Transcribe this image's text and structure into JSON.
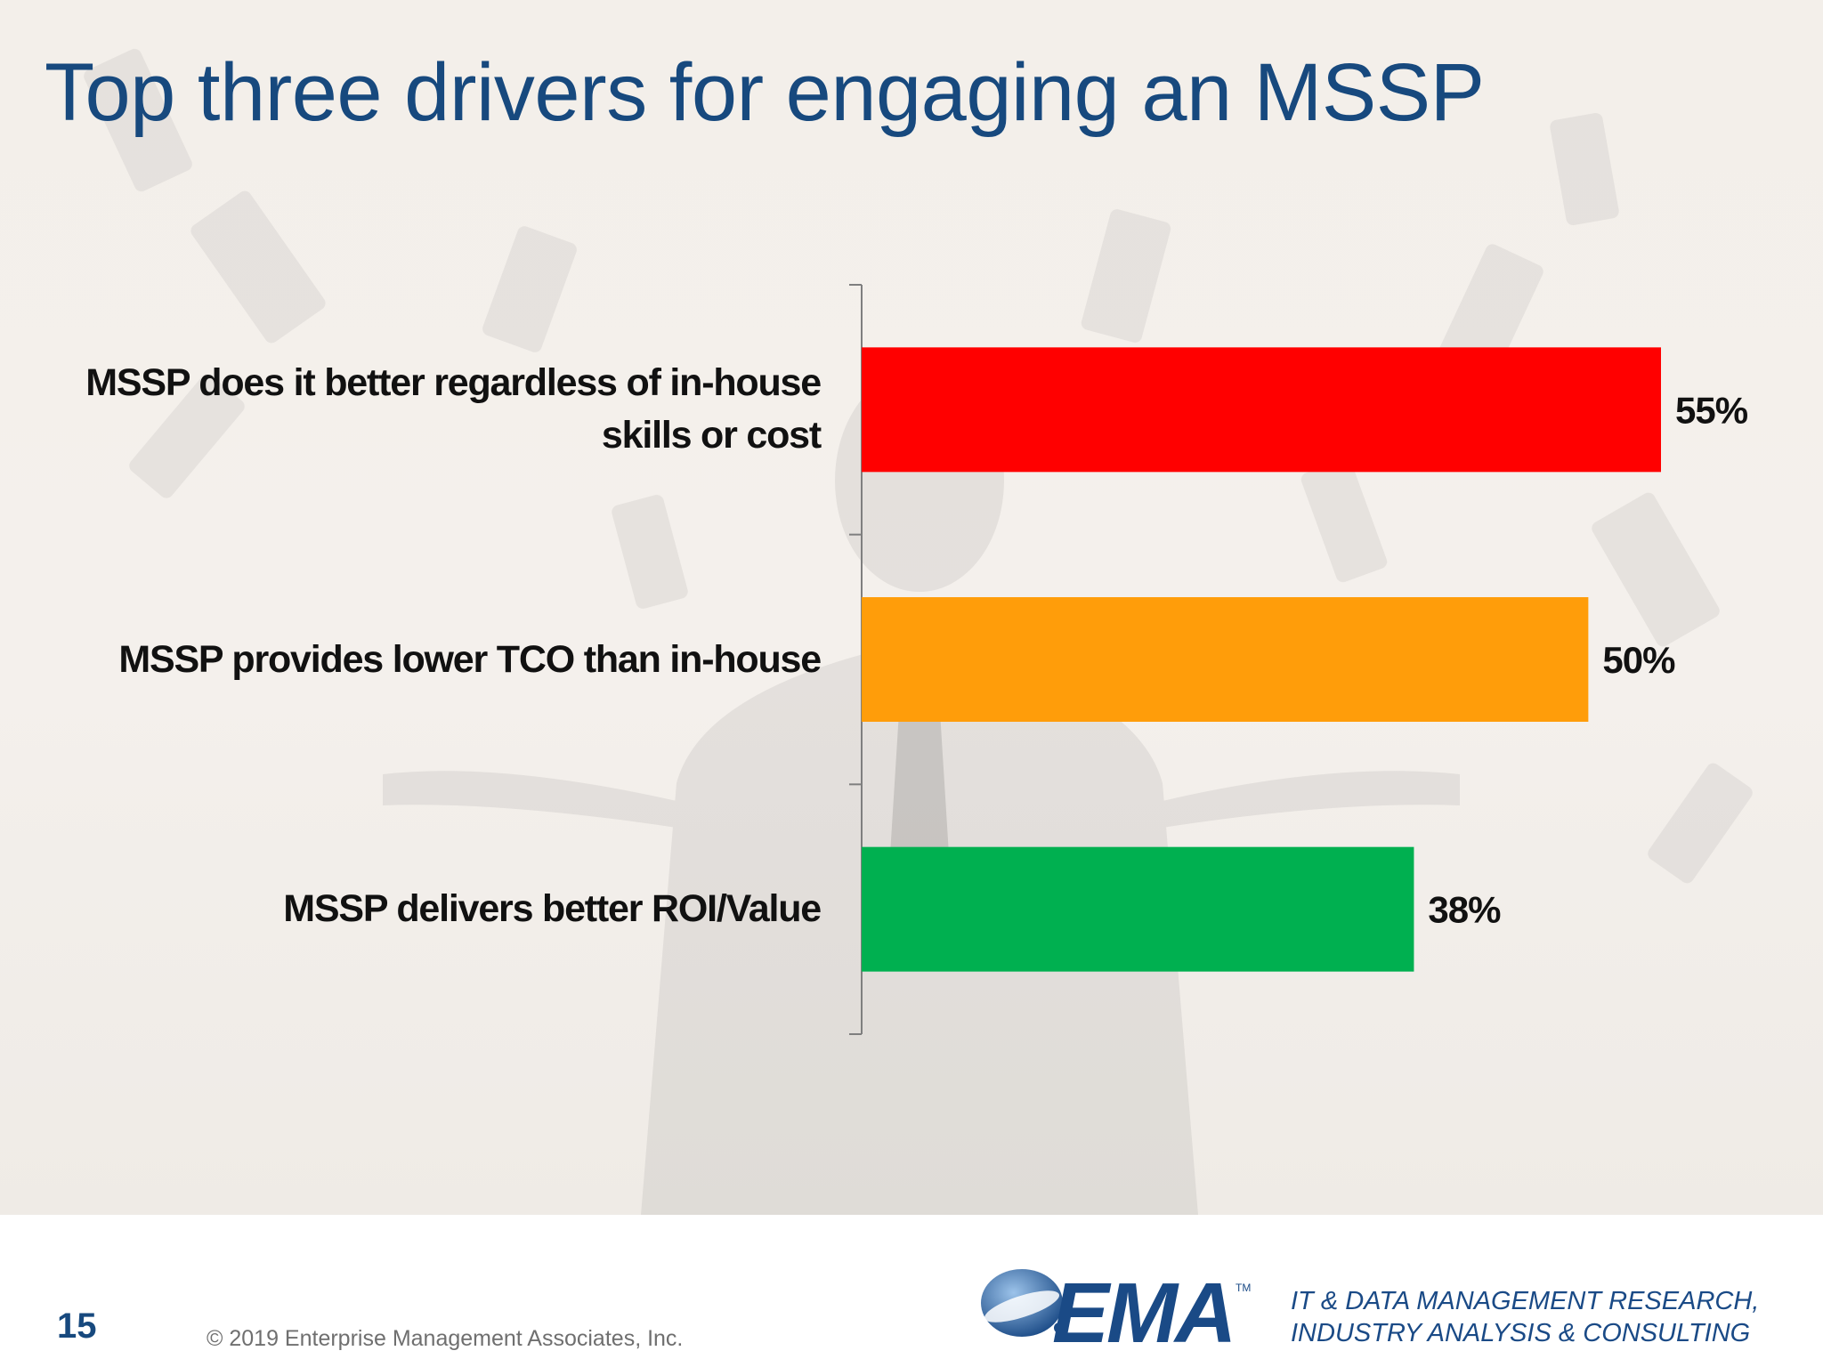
{
  "slide": {
    "title": "Top three drivers for engaging an MSSP",
    "page_number": "15",
    "copyright": "© 2019 Enterprise Management Associates, Inc.",
    "logo_text": "EMA",
    "logo_tm": "TM",
    "tagline": "IT & DATA MANAGEMENT RESEARCH,\nINDUSTRY ANALYSIS & CONSULTING"
  },
  "chart_data": {
    "type": "bar",
    "orientation": "horizontal",
    "title": "Top three drivers for engaging an MSSP",
    "categories": [
      "MSSP does it better regardless of in-house\nskills or cost",
      "MSSP provides lower TCO than in-house",
      "MSSP delivers better ROI/Value"
    ],
    "values": [
      55,
      50,
      38
    ],
    "value_labels": [
      "55%",
      "50%",
      "38%"
    ],
    "colors": [
      "#ff0000",
      "#ff9d0a",
      "#00b050"
    ],
    "unit": "%",
    "xlim": [
      0,
      60
    ],
    "grid": false,
    "legend": "none"
  }
}
